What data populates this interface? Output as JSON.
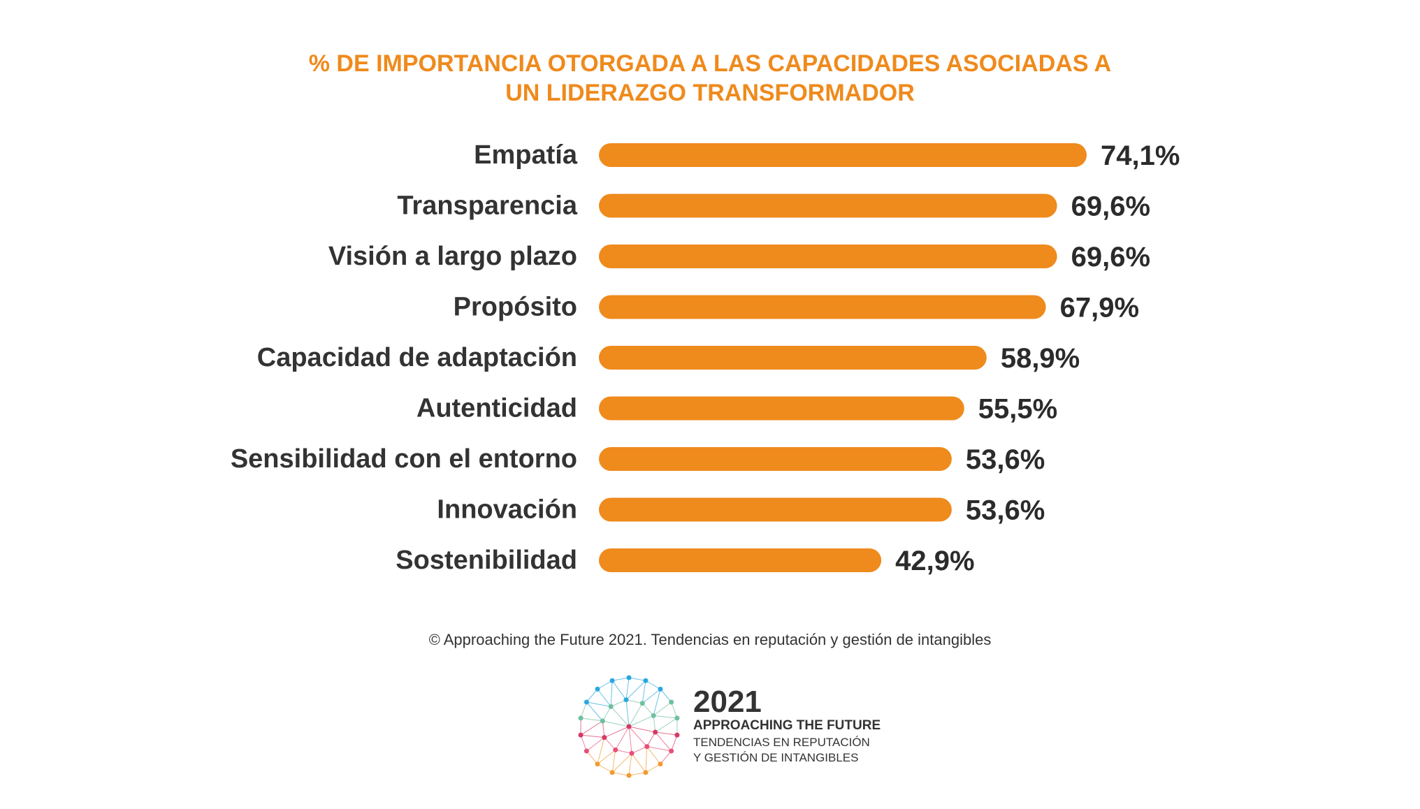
{
  "chart_data": {
    "type": "bar",
    "orientation": "horizontal",
    "title_lines": [
      "% DE IMPORTANCIA OTORGADA A LAS CAPACIDADES ASOCIADAS A",
      "UN LIDERAZGO TRANSFORMADOR"
    ],
    "categories": [
      "Empatía",
      "Transparencia",
      "Visión a largo plazo",
      "Propósito",
      "Capacidad de adaptación",
      "Autenticidad",
      "Sensibilidad con el entorno",
      "Innovación",
      "Sostenibilidad"
    ],
    "values": [
      74.1,
      69.6,
      69.6,
      67.9,
      58.9,
      55.5,
      53.6,
      53.6,
      42.9
    ],
    "value_labels": [
      "74,1%",
      "69,6%",
      "69,6%",
      "67,9%",
      "58,9%",
      "55,5%",
      "53,6%",
      "53,6%",
      "42,9%"
    ],
    "unit": "%",
    "bar_color": "#ef8a1c",
    "grid": false,
    "legend": "none"
  },
  "footer": {
    "copyright": "© Approaching the Future 2021. Tendencias en reputación y gestión de intangibles"
  },
  "logo": {
    "year": "2021",
    "name": "APPROACHING THE FUTURE",
    "subtitle_line1": "TENDENCIAS EN REPUTACIÓN",
    "subtitle_line2": "Y GESTIÓN DE INTANGIBLES",
    "colors": [
      "#29a8e0",
      "#6fbf9f",
      "#e94e77",
      "#f29b30",
      "#d63864"
    ]
  }
}
